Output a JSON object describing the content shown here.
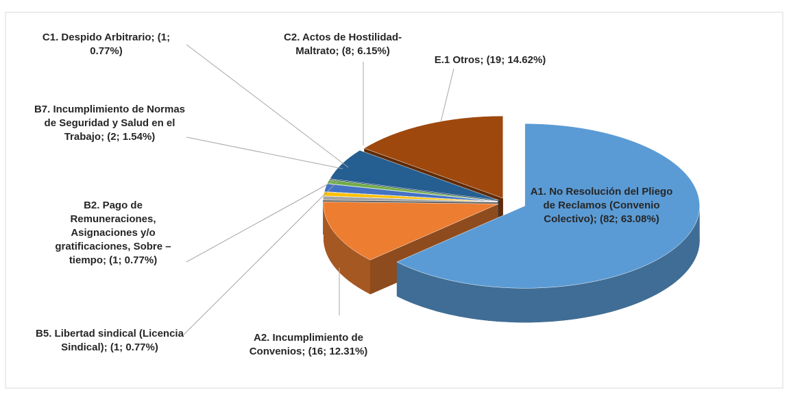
{
  "chart_data": {
    "type": "pie",
    "categories": [
      "A1. No Resolución del Pliego de Reclamos (Convenio Colectivo);",
      "A2. Incumplimiento de Convenios;",
      "B2. Pago de Remuneraciones, Asignaciones y/o gratificaciones, Sobre – tiempo;",
      "B5. Libertad sindical (Licencia Sindical);",
      "B7. Incumplimiento de Normas de Seguridad y Salud en el Trabajo;",
      "C1. Despido Arbitrario;",
      "C2. Actos de Hostilidad-Maltrato;",
      "E.1 Otros;"
    ],
    "values": [
      82,
      16,
      1,
      1,
      2,
      1,
      8,
      19
    ],
    "value_labels": [
      "(82; 63.08%)",
      "(16; 12.31%)",
      "(1; 0.77%)",
      "(1; 0.77%)",
      "(2; 1.54%)",
      "(1; 0.77%)",
      "(8; 6.15%)",
      "(19; 14.62%)"
    ],
    "colors": [
      "#5b9bd5",
      "#ed7d31",
      "#a5a5a5",
      "#ffc000",
      "#4472c4",
      "#70ad47",
      "#255e91",
      "#9e480e"
    ]
  }
}
